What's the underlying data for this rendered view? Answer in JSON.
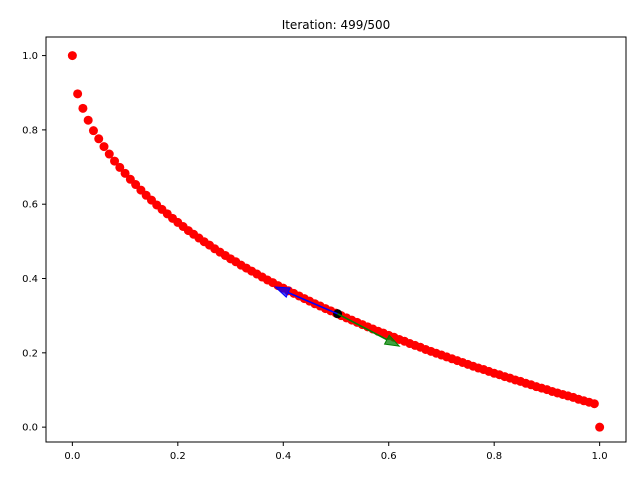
{
  "chart_data": {
    "type": "scatter",
    "title": "Iteration: 499/500",
    "xlabel": "",
    "ylabel": "",
    "xlim": [
      -0.05,
      1.05
    ],
    "ylim": [
      -0.04,
      1.05
    ],
    "x_ticks": [
      0.0,
      0.2,
      0.4,
      0.6,
      0.8,
      1.0
    ],
    "x_tick_labels": [
      "0.0",
      "0.2",
      "0.4",
      "0.6",
      "0.8",
      "1.0"
    ],
    "y_ticks": [
      0.0,
      0.2,
      0.4,
      0.6,
      0.8,
      1.0
    ],
    "y_tick_labels": [
      "0.0",
      "0.2",
      "0.4",
      "0.6",
      "0.8",
      "1.0"
    ],
    "grid": false,
    "series": [
      {
        "color": "#ff0000",
        "marker": "circle",
        "points": [
          [
            0.0,
            1.0
          ],
          [
            0.01,
            0.897
          ],
          [
            0.02,
            0.858
          ],
          [
            0.03,
            0.826
          ],
          [
            0.04,
            0.798
          ],
          [
            0.05,
            0.776
          ],
          [
            0.06,
            0.755
          ],
          [
            0.07,
            0.735
          ],
          [
            0.08,
            0.716
          ],
          [
            0.09,
            0.699
          ],
          [
            0.1,
            0.683
          ],
          [
            0.11,
            0.667
          ],
          [
            0.12,
            0.653
          ],
          [
            0.13,
            0.638
          ],
          [
            0.14,
            0.624
          ],
          [
            0.15,
            0.611
          ],
          [
            0.16,
            0.598
          ],
          [
            0.17,
            0.586
          ],
          [
            0.18,
            0.574
          ],
          [
            0.19,
            0.562
          ],
          [
            0.2,
            0.551
          ],
          [
            0.21,
            0.54
          ],
          [
            0.22,
            0.529
          ],
          [
            0.23,
            0.519
          ],
          [
            0.24,
            0.509
          ],
          [
            0.25,
            0.499
          ],
          [
            0.26,
            0.49
          ],
          [
            0.27,
            0.48
          ],
          [
            0.28,
            0.471
          ],
          [
            0.29,
            0.462
          ],
          [
            0.3,
            0.453
          ],
          [
            0.31,
            0.445
          ],
          [
            0.32,
            0.436
          ],
          [
            0.33,
            0.428
          ],
          [
            0.34,
            0.42
          ],
          [
            0.35,
            0.412
          ],
          [
            0.36,
            0.404
          ],
          [
            0.37,
            0.396
          ],
          [
            0.38,
            0.389
          ],
          [
            0.39,
            0.381
          ],
          [
            0.4,
            0.374
          ],
          [
            0.41,
            0.367
          ],
          [
            0.42,
            0.36
          ],
          [
            0.43,
            0.353
          ],
          [
            0.44,
            0.346
          ],
          [
            0.45,
            0.339
          ],
          [
            0.46,
            0.332
          ],
          [
            0.47,
            0.326
          ],
          [
            0.48,
            0.319
          ],
          [
            0.49,
            0.313
          ],
          [
            0.5,
            0.307
          ],
          [
            0.51,
            0.3
          ],
          [
            0.52,
            0.294
          ],
          [
            0.53,
            0.288
          ],
          [
            0.54,
            0.282
          ],
          [
            0.55,
            0.276
          ],
          [
            0.56,
            0.27
          ],
          [
            0.57,
            0.264
          ],
          [
            0.58,
            0.258
          ],
          [
            0.59,
            0.253
          ],
          [
            0.6,
            0.247
          ],
          [
            0.61,
            0.242
          ],
          [
            0.62,
            0.236
          ],
          [
            0.63,
            0.231
          ],
          [
            0.64,
            0.225
          ],
          [
            0.65,
            0.22
          ],
          [
            0.66,
            0.215
          ],
          [
            0.67,
            0.209
          ],
          [
            0.68,
            0.204
          ],
          [
            0.69,
            0.199
          ],
          [
            0.7,
            0.194
          ],
          [
            0.71,
            0.189
          ],
          [
            0.72,
            0.184
          ],
          [
            0.73,
            0.179
          ],
          [
            0.74,
            0.174
          ],
          [
            0.75,
            0.169
          ],
          [
            0.76,
            0.164
          ],
          [
            0.77,
            0.159
          ],
          [
            0.78,
            0.155
          ],
          [
            0.79,
            0.15
          ],
          [
            0.8,
            0.145
          ],
          [
            0.81,
            0.141
          ],
          [
            0.82,
            0.136
          ],
          [
            0.83,
            0.132
          ],
          [
            0.84,
            0.127
          ],
          [
            0.85,
            0.123
          ],
          [
            0.86,
            0.118
          ],
          [
            0.87,
            0.114
          ],
          [
            0.88,
            0.109
          ],
          [
            0.89,
            0.105
          ],
          [
            0.9,
            0.101
          ],
          [
            0.91,
            0.096
          ],
          [
            0.92,
            0.092
          ],
          [
            0.93,
            0.088
          ],
          [
            0.94,
            0.084
          ],
          [
            0.95,
            0.08
          ],
          [
            0.96,
            0.075
          ],
          [
            0.97,
            0.071
          ],
          [
            0.98,
            0.067
          ],
          [
            0.99,
            0.063
          ],
          [
            1.0,
            0.0
          ]
        ]
      },
      {
        "color": "#000000",
        "marker": "circle",
        "points": [
          [
            0.503,
            0.305
          ]
        ]
      }
    ],
    "arrows": [
      {
        "color": "#0000ff",
        "from": [
          0.503,
          0.305
        ],
        "to": [
          0.385,
          0.377
        ]
      },
      {
        "color": "#008000",
        "from": [
          0.503,
          0.305
        ],
        "to": [
          0.62,
          0.218
        ]
      }
    ]
  }
}
